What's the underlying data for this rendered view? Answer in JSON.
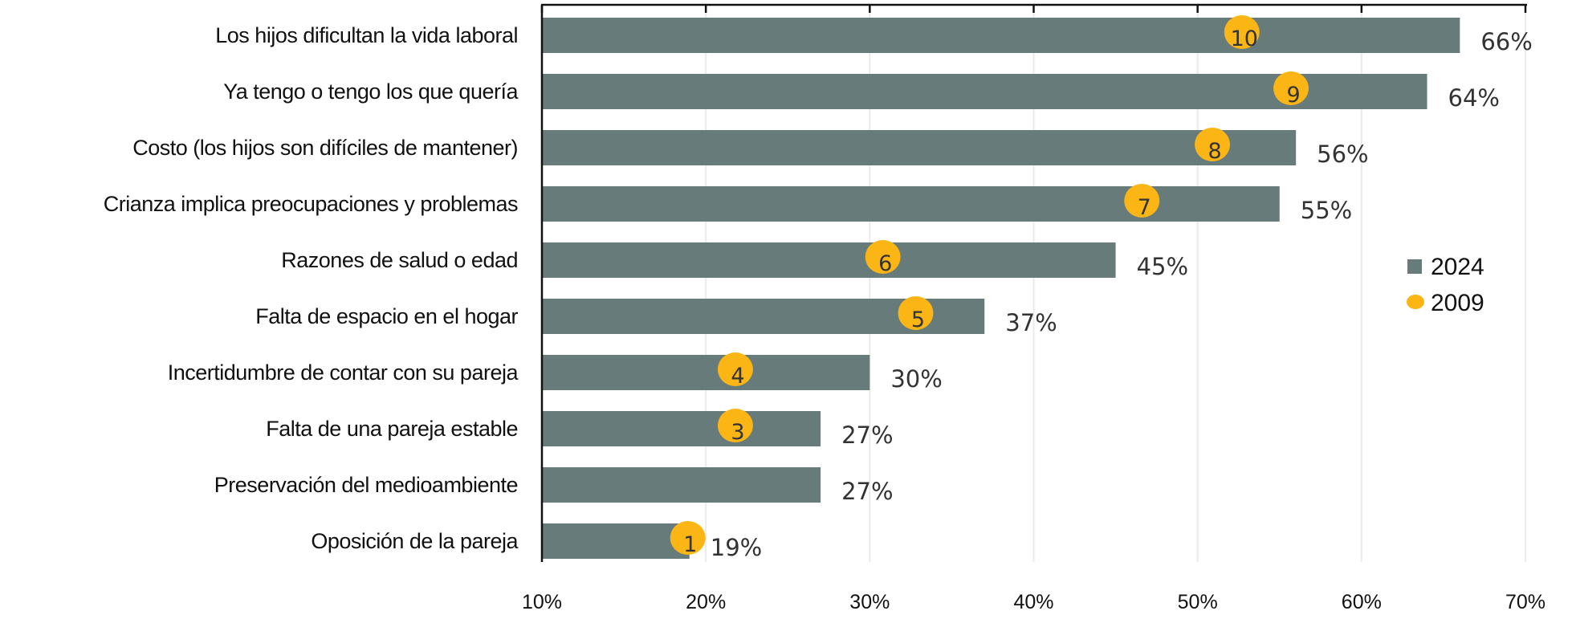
{
  "chart_data": {
    "type": "bar",
    "orientation": "horizontal",
    "title": "",
    "xlabel": "",
    "ylabel": "",
    "xlim": [
      10,
      70
    ],
    "xticks": [
      "10%",
      "20%",
      "30%",
      "40%",
      "50%",
      "60%",
      "70%"
    ],
    "xtick_values": [
      10,
      20,
      30,
      40,
      50,
      60,
      70
    ],
    "grid": "vertical",
    "legend_position": "right",
    "categories": [
      "Los hijos dificultan la vida laboral",
      "Ya tengo o tengo los que quería",
      "Costo (los hijos son difíciles de mantener)",
      "Crianza implica preocupaciones y problemas",
      "Razones de salud o edad",
      "Falta de espacio en el hogar",
      "Incertidumbre de contar con su pareja",
      "Falta de una pareja estable",
      "Preservación del medioambiente",
      "Oposición de la pareja"
    ],
    "series": [
      {
        "name": "2024",
        "kind": "bar",
        "color": "#667b7a",
        "values": [
          66,
          64,
          56,
          55,
          45,
          37,
          30,
          27,
          27,
          19
        ],
        "labels": [
          "66%",
          "64%",
          "56%",
          "55%",
          "45%",
          "37%",
          "30%",
          "27%",
          "27%",
          "19%"
        ]
      },
      {
        "name": "2009",
        "kind": "dot",
        "color": "#fbb515",
        "values": [
          52.7,
          55.7,
          50.9,
          46.6,
          30.8,
          32.8,
          21.8,
          21.8,
          null,
          18.9
        ],
        "labels": [
          "10",
          "9",
          "8",
          "7",
          "6",
          "5",
          "4",
          "3",
          null,
          "1"
        ]
      }
    ]
  }
}
